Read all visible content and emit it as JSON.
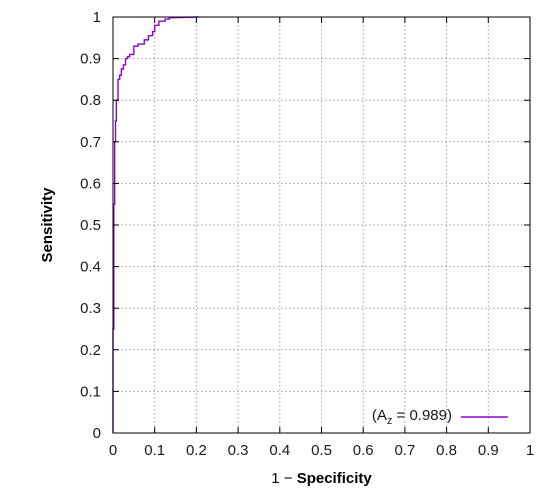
{
  "chart_data": {
    "type": "line",
    "xlabel_prefix": "1 − ",
    "xlabel_main": "Specificity",
    "ylabel": "Sensitivity",
    "xlim": [
      0,
      1
    ],
    "ylim": [
      0,
      1
    ],
    "x_ticks": [
      0,
      0.1,
      0.2,
      0.3,
      0.4,
      0.5,
      0.6,
      0.7,
      0.8,
      0.9,
      1
    ],
    "x_tick_labels": [
      "0",
      "0.1",
      "0.2",
      "0.3",
      "0.4",
      "0.5",
      "0.6",
      "0.7",
      "0.8",
      "0.9",
      "1"
    ],
    "y_ticks": [
      0,
      0.1,
      0.2,
      0.3,
      0.4,
      0.5,
      0.6,
      0.7,
      0.8,
      0.9,
      1
    ],
    "y_tick_labels": [
      "0",
      "0.1",
      "0.2",
      "0.3",
      "0.4",
      "0.5",
      "0.6",
      "0.7",
      "0.8",
      "0.9",
      "1"
    ],
    "grid": true,
    "legend_position": "bottom-right",
    "series": [
      {
        "legend_open": "(A",
        "legend_sub": "z",
        "legend_close": " = 0.989)",
        "color": "#9400d3",
        "x": [
          0,
          0,
          0.002,
          0.002,
          0.004,
          0.004,
          0.006,
          0.006,
          0.008,
          0.008,
          0.012,
          0.012,
          0.016,
          0.016,
          0.02,
          0.02,
          0.025,
          0.025,
          0.03,
          0.03,
          0.035,
          0.035,
          0.04,
          0.04,
          0.05,
          0.05,
          0.06,
          0.06,
          0.075,
          0.075,
          0.085,
          0.085,
          0.095,
          0.095,
          0.1,
          0.1,
          0.11,
          0.11,
          0.125,
          0.125,
          0.135,
          0.135,
          0.205
        ],
        "y": [
          0,
          0.25,
          0.25,
          0.55,
          0.55,
          0.7,
          0.7,
          0.75,
          0.75,
          0.8,
          0.8,
          0.85,
          0.85,
          0.86,
          0.86,
          0.875,
          0.875,
          0.885,
          0.885,
          0.9,
          0.9,
          0.905,
          0.905,
          0.91,
          0.91,
          0.93,
          0.93,
          0.935,
          0.935,
          0.945,
          0.945,
          0.955,
          0.955,
          0.965,
          0.965,
          0.98,
          0.98,
          0.99,
          0.99,
          0.995,
          0.995,
          0.998,
          1.0
        ]
      }
    ]
  },
  "colors": {
    "axis": "#000000",
    "grid": "#a0a0a0",
    "curve": "#9400d3"
  }
}
